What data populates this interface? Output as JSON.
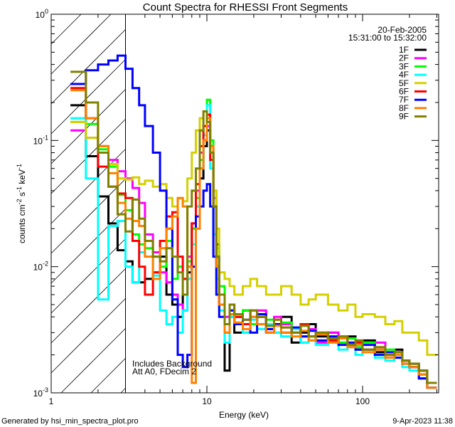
{
  "chart_data": {
    "type": "line",
    "title": "Count Spectra for RHESSI Front Segments",
    "xlabel": "Energy (keV)",
    "ylabel": {
      "base": "counts cm",
      "exp1": "-2",
      "mid": " s",
      "exp2": "-1",
      "end": " keV",
      "exp3": "-1"
    },
    "xscale": "log",
    "yscale": "log",
    "xlim": [
      1,
      308
    ],
    "ylim": [
      0.001,
      1
    ],
    "x_ticks": [
      {
        "value": 1,
        "label": "1"
      },
      {
        "value": 10,
        "label": "10"
      },
      {
        "value": 100,
        "label": "100"
      }
    ],
    "y_ticks": [
      {
        "value": 1,
        "base": "10",
        "exp": "0"
      },
      {
        "value": 0.1,
        "base": "10",
        "exp": "-1"
      },
      {
        "value": 0.01,
        "base": "10",
        "exp": "-2"
      },
      {
        "value": 0.001,
        "base": "10",
        "exp": "-3"
      }
    ],
    "hatched_region_keV": [
      1,
      3
    ],
    "legend": {
      "placement": "top-right",
      "date": "20-Feb-2005",
      "time_range": "15:31:00 to 15:32:00"
    },
    "annotations": [
      "Includes Background",
      "Att A0, FDecim 2"
    ],
    "energy_edges": [
      1.33,
      1.67,
      2.0,
      2.33,
      2.67,
      3.0,
      3.33,
      3.67,
      4.0,
      4.5,
      5.0,
      5.5,
      6.0,
      6.5,
      7.0,
      7.5,
      8.0,
      8.5,
      9.0,
      9.5,
      10,
      10.5,
      11,
      11.5,
      12,
      13,
      14,
      15,
      17,
      19,
      21,
      24,
      27,
      30,
      35,
      40,
      45,
      50,
      60,
      70,
      80,
      90,
      100,
      120,
      140,
      160,
      180,
      200,
      230,
      260,
      300
    ],
    "series": [
      {
        "name": "1F",
        "color": "#000000",
        "values": [
          0.19,
          0.075,
          0.036,
          0.022,
          0.0135,
          0.011,
          0.0075,
          0.0075,
          0.008,
          0.009,
          0.012,
          0.006,
          0.005,
          0.004,
          0.006,
          0.009,
          0.02,
          0.03,
          0.05,
          0.09,
          0.12,
          0.08,
          0.03,
          0.015,
          0.006,
          0.0015,
          0.004,
          0.003,
          0.0045,
          0.0035,
          0.004,
          0.003,
          0.0035,
          0.004,
          0.0025,
          0.003,
          0.0035,
          0.0028,
          0.003,
          0.0025,
          0.0028,
          0.0022,
          0.0026,
          0.0021,
          0.002,
          0.0022,
          0.0018,
          0.0017,
          0.0015,
          0.0012
        ]
      },
      {
        "name": "2F",
        "color": "#ff00ff",
        "values": [
          0.12,
          0.105,
          0.09,
          0.07,
          0.057,
          0.05,
          0.042,
          0.032,
          0.018,
          0.013,
          0.009,
          0.0075,
          0.006,
          0.005,
          0.0045,
          0.012,
          0.022,
          0.04,
          0.08,
          0.1,
          0.13,
          0.09,
          0.035,
          0.012,
          0.006,
          0.004,
          0.005,
          0.004,
          0.003,
          0.004,
          0.0045,
          0.003,
          0.004,
          0.0035,
          0.003,
          0.0028,
          0.0032,
          0.0025,
          0.003,
          0.0027,
          0.0024,
          0.0026,
          0.0022,
          0.0025,
          0.002,
          0.0021,
          0.0018,
          0.0016,
          0.0013,
          0.0011
        ]
      },
      {
        "name": "3F",
        "color": "#00ff00",
        "values": [
          0.14,
          0.135,
          0.085,
          0.062,
          0.037,
          0.028,
          0.018,
          0.015,
          0.014,
          0.012,
          0.01,
          0.016,
          0.008,
          0.01,
          0.008,
          0.011,
          0.02,
          0.035,
          0.07,
          0.13,
          0.21,
          0.1,
          0.04,
          0.014,
          0.007,
          0.0035,
          0.005,
          0.004,
          0.0045,
          0.0035,
          0.004,
          0.0038,
          0.003,
          0.0036,
          0.003,
          0.0034,
          0.0026,
          0.003,
          0.0028,
          0.0025,
          0.0027,
          0.0023,
          0.0025,
          0.002,
          0.0022,
          0.0019,
          0.0018,
          0.0016,
          0.0014,
          0.0012
        ]
      },
      {
        "name": "4F",
        "color": "#00ffff",
        "values": [
          0.15,
          0.05,
          0.0055,
          0.021,
          0.023,
          0.01,
          0.0075,
          0.013,
          0.012,
          0.0085,
          0.0045,
          0.0035,
          0.004,
          0.003,
          0.0045,
          0.008,
          0.015,
          0.03,
          0.06,
          0.11,
          0.19,
          0.06,
          0.018,
          0.008,
          0.0045,
          0.0025,
          0.004,
          0.0035,
          0.003,
          0.0038,
          0.0032,
          0.0035,
          0.003,
          0.0028,
          0.0032,
          0.0025,
          0.0028,
          0.0024,
          0.0026,
          0.0022,
          0.0024,
          0.002,
          0.0022,
          0.0019,
          0.0018,
          0.0019,
          0.0016,
          0.0015,
          0.0013,
          0.0011
        ]
      },
      {
        "name": "5F",
        "color": "#d4d000",
        "values": [
          0.14,
          0.105,
          0.09,
          0.065,
          0.05,
          0.049,
          0.051,
          0.045,
          0.048,
          0.043,
          0.045,
          0.035,
          0.03,
          0.035,
          0.033,
          0.05,
          0.08,
          0.12,
          0.15,
          0.17,
          0.14,
          0.09,
          0.04,
          0.02,
          0.009,
          0.008,
          0.007,
          0.006,
          0.007,
          0.008,
          0.007,
          0.006,
          0.006,
          0.007,
          0.006,
          0.005,
          0.0055,
          0.006,
          0.005,
          0.0045,
          0.005,
          0.004,
          0.0042,
          0.004,
          0.0035,
          0.0037,
          0.003,
          0.003,
          0.0026,
          0.002
        ]
      },
      {
        "name": "6F",
        "color": "#ff0000",
        "values": [
          0.26,
          0.15,
          0.062,
          0.043,
          0.038,
          0.035,
          0.016,
          0.01,
          0.006,
          0.009,
          0.016,
          0.025,
          0.027,
          0.012,
          0.008,
          0.01,
          0.022,
          0.045,
          0.09,
          0.13,
          0.16,
          0.07,
          0.03,
          0.01,
          0.005,
          0.0035,
          0.0045,
          0.004,
          0.0035,
          0.0045,
          0.004,
          0.0032,
          0.0038,
          0.0033,
          0.003,
          0.0035,
          0.0028,
          0.003,
          0.0026,
          0.0028,
          0.0024,
          0.0025,
          0.0022,
          0.0023,
          0.002,
          0.0021,
          0.0018,
          0.0016,
          0.0014,
          0.0012
        ]
      },
      {
        "name": "7F",
        "color": "#0000ff",
        "values": [
          0.28,
          0.36,
          0.4,
          0.43,
          0.47,
          0.37,
          0.26,
          0.19,
          0.13,
          0.08,
          0.04,
          0.02,
          0.0055,
          0.002,
          0.0016,
          0.002,
          0.01,
          0.025,
          0.03,
          0.04,
          0.045,
          0.03,
          0.012,
          0.006,
          0.004,
          0.003,
          0.0045,
          0.0035,
          0.0038,
          0.003,
          0.0042,
          0.0032,
          0.0035,
          0.003,
          0.0033,
          0.0028,
          0.0031,
          0.0026,
          0.0028,
          0.0024,
          0.0025,
          0.0022,
          0.0024,
          0.002,
          0.0021,
          0.0019,
          0.0017,
          0.0016,
          0.0013,
          0.0011
        ]
      },
      {
        "name": "8F",
        "color": "#ff8000",
        "values": [
          0.25,
          0.15,
          0.09,
          0.055,
          0.032,
          0.024,
          0.023,
          0.021,
          0.012,
          0.008,
          0.014,
          0.02,
          0.025,
          0.035,
          0.03,
          0.01,
          0.0012,
          0.02,
          0.06,
          0.1,
          0.15,
          0.09,
          0.03,
          0.01,
          0.005,
          0.003,
          0.0042,
          0.0036,
          0.0032,
          0.004,
          0.0035,
          0.003,
          0.0034,
          0.003,
          0.0028,
          0.0031,
          0.0026,
          0.0029,
          0.0025,
          0.0027,
          0.0023,
          0.0024,
          0.0021,
          0.0022,
          0.0019,
          0.002,
          0.0017,
          0.0016,
          0.0014,
          0.0011
        ]
      },
      {
        "name": "9F",
        "color": "#808000",
        "values": [
          0.35,
          0.2,
          0.08,
          0.043,
          0.026,
          0.019,
          0.034,
          0.024,
          0.016,
          0.012,
          0.011,
          0.014,
          0.012,
          0.009,
          0.006,
          0.03,
          0.04,
          0.06,
          0.12,
          0.17,
          0.14,
          0.08,
          0.03,
          0.012,
          0.006,
          0.0035,
          0.005,
          0.0042,
          0.0038,
          0.0045,
          0.004,
          0.0034,
          0.0038,
          0.0033,
          0.003,
          0.0034,
          0.0028,
          0.003,
          0.0027,
          0.0028,
          0.0024,
          0.0026,
          0.0022,
          0.0023,
          0.002,
          0.0021,
          0.0018,
          0.0017,
          0.0015,
          0.0012
        ]
      }
    ]
  },
  "footer": {
    "generated_by": "Generated by hsi_min_spectra_plot.pro",
    "timestamp": "9-Apr-2023 11:38"
  }
}
